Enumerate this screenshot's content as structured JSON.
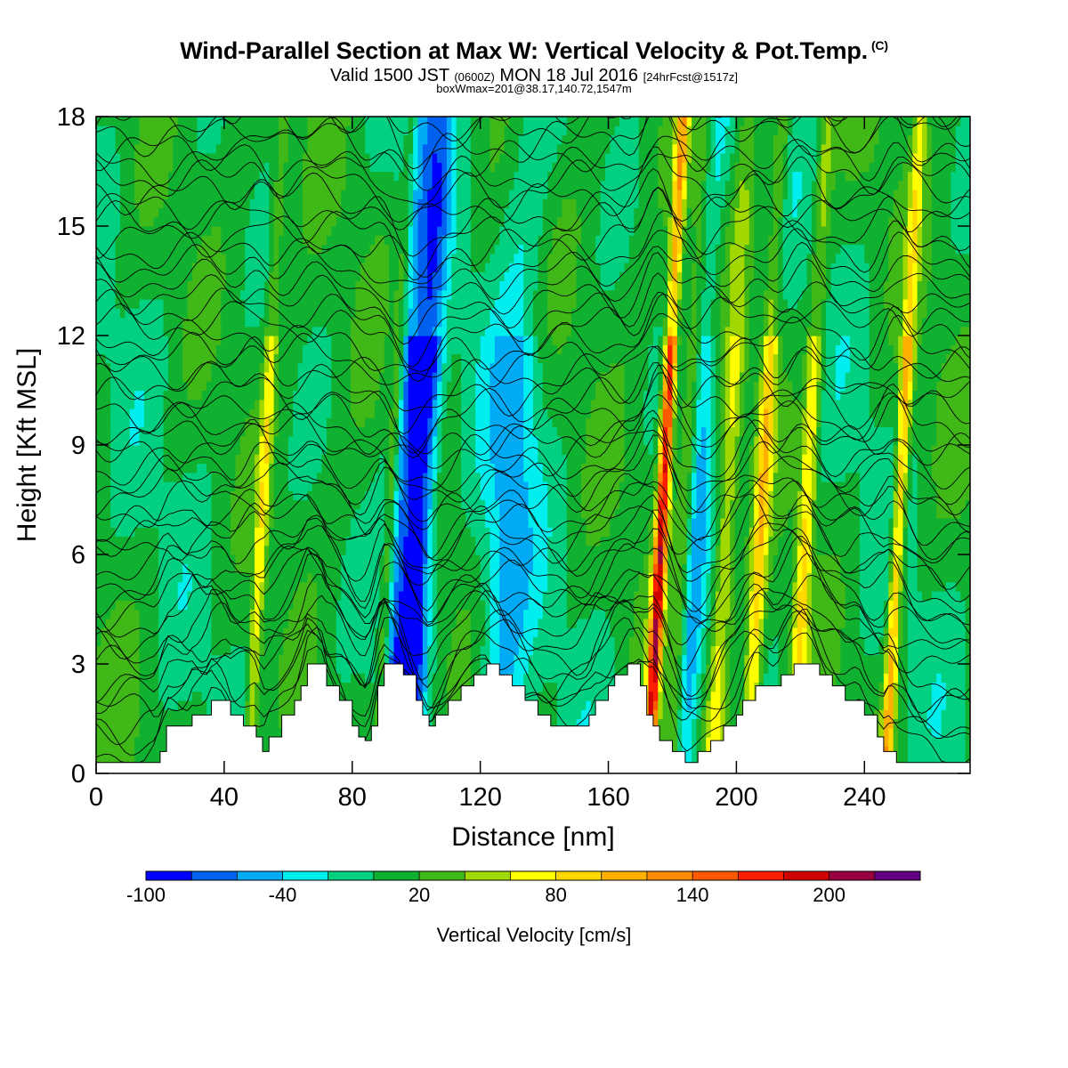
{
  "header": {
    "title": "Wind-Parallel Section at Max W: Vertical Velocity & Pot.Temp.",
    "copyright": "(C)",
    "valid_prefix": "Valid 1500 JST",
    "valid_utc": "(0600Z)",
    "valid_date": "MON 18 Jul 2016",
    "forecast": "[24hrFcst@1517z]",
    "box_info": "boxWmax=201@38.17,140.72,1547m"
  },
  "chart_data": {
    "type": "heatmap",
    "xlabel": "Distance [nm]",
    "ylabel": "Height [Kft MSL]",
    "xlim": [
      0,
      273
    ],
    "ylim": [
      0,
      18
    ],
    "x_ticks": [
      0,
      40,
      80,
      120,
      160,
      200,
      240
    ],
    "y_ticks": [
      0,
      3,
      6,
      9,
      12,
      15,
      18
    ],
    "colorbar": {
      "label": "Vertical Velocity [cm/s]",
      "min": -100,
      "max": 250,
      "step": 20,
      "tick_labels": [
        -100,
        -40,
        20,
        80,
        140,
        200
      ],
      "colors": [
        "#0000ff",
        "#0060f0",
        "#00aaf5",
        "#00eeee",
        "#00d080",
        "#10b030",
        "#40b818",
        "#a0d800",
        "#ffff00",
        "#ffd800",
        "#ffb000",
        "#ff8c00",
        "#ff5a00",
        "#ff1e00",
        "#d00000",
        "#9a0040",
        "#600080"
      ]
    },
    "terrain_kft": [
      [
        0,
        0.3
      ],
      [
        18,
        0.3
      ],
      [
        20,
        0.6
      ],
      [
        22,
        1.3
      ],
      [
        28,
        1.3
      ],
      [
        30,
        1.6
      ],
      [
        34,
        1.6
      ],
      [
        36,
        2.0
      ],
      [
        40,
        2.0
      ],
      [
        42,
        1.6
      ],
      [
        46,
        1.3
      ],
      [
        50,
        1.0
      ],
      [
        52,
        0.6
      ],
      [
        54,
        1.0
      ],
      [
        58,
        1.6
      ],
      [
        62,
        2.0
      ],
      [
        64,
        2.4
      ],
      [
        66,
        3.0
      ],
      [
        70,
        3.0
      ],
      [
        72,
        2.4
      ],
      [
        76,
        2.0
      ],
      [
        80,
        1.3
      ],
      [
        82,
        1.0
      ],
      [
        84,
        0.9
      ],
      [
        86,
        1.3
      ],
      [
        88,
        2.4
      ],
      [
        90,
        3.0
      ],
      [
        94,
        3.0
      ],
      [
        96,
        2.7
      ],
      [
        100,
        2.0
      ],
      [
        102,
        1.6
      ],
      [
        104,
        1.3
      ],
      [
        106,
        1.6
      ],
      [
        110,
        2.0
      ],
      [
        114,
        2.4
      ],
      [
        118,
        2.7
      ],
      [
        122,
        3.0
      ],
      [
        126,
        2.7
      ],
      [
        130,
        2.4
      ],
      [
        134,
        2.0
      ],
      [
        138,
        1.6
      ],
      [
        142,
        1.3
      ],
      [
        146,
        1.3
      ],
      [
        150,
        1.3
      ],
      [
        154,
        1.6
      ],
      [
        156,
        2.0
      ],
      [
        160,
        2.4
      ],
      [
        162,
        2.7
      ],
      [
        166,
        3.0
      ],
      [
        170,
        2.4
      ],
      [
        172,
        1.6
      ],
      [
        174,
        1.3
      ],
      [
        176,
        0.9
      ],
      [
        180,
        0.6
      ],
      [
        184,
        0.3
      ],
      [
        188,
        0.6
      ],
      [
        192,
        0.9
      ],
      [
        196,
        1.3
      ],
      [
        200,
        1.6
      ],
      [
        202,
        2.0
      ],
      [
        206,
        2.4
      ],
      [
        212,
        2.4
      ],
      [
        214,
        2.7
      ],
      [
        218,
        3.0
      ],
      [
        222,
        3.0
      ],
      [
        226,
        2.7
      ],
      [
        230,
        2.4
      ],
      [
        234,
        2.0
      ],
      [
        238,
        2.0
      ],
      [
        240,
        1.6
      ],
      [
        244,
        1.0
      ],
      [
        246,
        0.6
      ],
      [
        248,
        0.6
      ],
      [
        250,
        0.3
      ],
      [
        273,
        0.3
      ]
    ],
    "updraft_bands": [
      {
        "x": 95,
        "w": 6,
        "v": -90
      },
      {
        "x": 100,
        "w": 4,
        "v": -70
      },
      {
        "x": 127,
        "w": 8,
        "v": -50
      },
      {
        "x": 184,
        "w": 5,
        "v": -80
      },
      {
        "x": 175,
        "w": 2,
        "v": 180
      },
      {
        "x": 182,
        "w": 3,
        "v": 90
      },
      {
        "x": 206,
        "w": 2.5,
        "v": 80
      },
      {
        "x": 220,
        "w": 2.5,
        "v": 75
      },
      {
        "x": 249,
        "w": 2,
        "v": 100
      },
      {
        "x": 195,
        "w": 3,
        "v": 55
      },
      {
        "x": 50,
        "w": 2,
        "v": 60
      },
      {
        "x": 90,
        "w": 2,
        "v": 55
      }
    ]
  }
}
